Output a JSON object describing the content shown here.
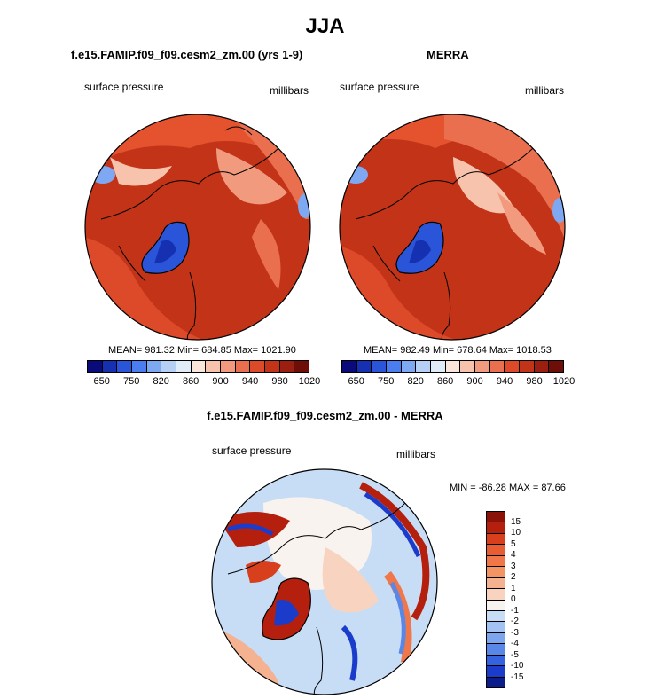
{
  "figure": {
    "season": "JJA",
    "model_title": "f.e15.FAMIP.f09_f09.cesm2_zm.00 (yrs 1-9)",
    "obs_title": "MERRA",
    "diff_title": "f.e15.FAMIP.f09_f09.cesm2_zm.00 - MERRA"
  },
  "panels": {
    "model": {
      "variable": "surface pressure",
      "units": "millibars",
      "stats": "MEAN= 981.32  Min= 684.85  Max= 1021.90"
    },
    "obs": {
      "variable": "surface pressure",
      "units": "millibars",
      "stats": "MEAN= 982.49  Min= 678.64  Max= 1018.53"
    },
    "diff": {
      "variable": "surface pressure",
      "units": "millibars",
      "stats": "MIN = -86.28 MAX =  87.66"
    }
  },
  "colorbars": {
    "main_ticks": [
      "650",
      "750",
      "820",
      "860",
      "900",
      "940",
      "980",
      "1020"
    ],
    "main_colors": [
      "#0a0a7a",
      "#1530b0",
      "#2a55d8",
      "#4a7ef0",
      "#7ea8f2",
      "#b6cff5",
      "#e0ecf8",
      "#fbe6dc",
      "#f7c3ad",
      "#f29a7e",
      "#ea6f4f",
      "#dc4a2a",
      "#c23318",
      "#9b1f10",
      "#6e0e08"
    ],
    "diff_ticks": [
      "15",
      "10",
      "5",
      "4",
      "3",
      "2",
      "1",
      "0",
      "-1",
      "-2",
      "-3",
      "-4",
      "-5",
      "-10",
      "-15"
    ],
    "diff_colors": [
      "#8a1208",
      "#b51f0e",
      "#d8401d",
      "#ea5d33",
      "#f0774a",
      "#f39465",
      "#f5b291",
      "#f8d4c0",
      "#f8f3ee",
      "#c7dcf5",
      "#a3c3f2",
      "#7ea6ee",
      "#5987e8",
      "#3562de",
      "#1b3ccb",
      "#0a1d8a"
    ]
  }
}
